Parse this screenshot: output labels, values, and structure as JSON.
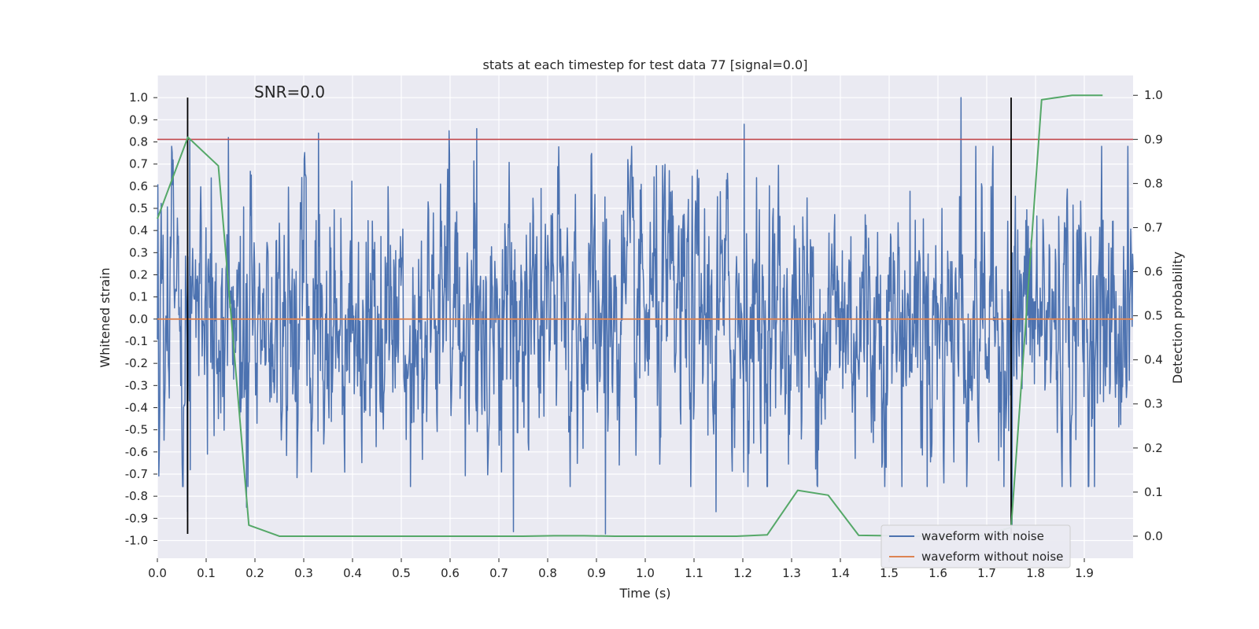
{
  "chart_data": {
    "type": "line",
    "title": "stats at each timestep for test data 77 [signal=0.0]",
    "annotation": "SNR=0.0",
    "xlabel": "Time (s)",
    "ylabel_left": "Whitened strain",
    "ylabel_right": "Detection probability",
    "xlim": [
      0.0,
      2.0
    ],
    "ylim_left": [
      -1.08,
      1.1
    ],
    "ylim_right": [
      -0.05,
      1.045
    ],
    "x_ticks": [
      0.0,
      0.1,
      0.2,
      0.3,
      0.4,
      0.5,
      0.6,
      0.7,
      0.8,
      0.9,
      1.0,
      1.1,
      1.2,
      1.3,
      1.4,
      1.5,
      1.6,
      1.7,
      1.8,
      1.9
    ],
    "x_tick_labels": [
      "0.0",
      "0.1",
      "0.2",
      "0.3",
      "0.4",
      "0.5",
      "0.6",
      "0.7",
      "0.8",
      "0.9",
      "1.0",
      "1.1",
      "1.2",
      "1.3",
      "1.4",
      "1.5",
      "1.6",
      "1.7",
      "1.8",
      "1.9"
    ],
    "y_ticks_left": [
      1.0,
      0.9,
      0.8,
      0.7,
      0.6,
      0.5,
      0.4,
      0.3,
      0.2,
      0.1,
      0.0,
      -0.1,
      -0.2,
      -0.3,
      -0.4,
      -0.5,
      -0.6,
      -0.7,
      -0.8,
      -0.9,
      -1.0
    ],
    "y_tick_labels_left": [
      "1.0",
      "0.9",
      "0.8",
      "0.7",
      "0.6",
      "0.5",
      "0.4",
      "0.3",
      "0.2",
      "0.1",
      "0.0",
      "-0.1",
      "-0.2",
      "-0.3",
      "-0.4",
      "-0.5",
      "-0.6",
      "-0.7",
      "-0.8",
      "-0.9",
      "-1.0"
    ],
    "y_ticks_right": [
      1.0,
      0.9,
      0.8,
      0.7,
      0.6,
      0.5,
      0.4,
      0.3,
      0.2,
      0.1,
      0.0
    ],
    "y_tick_labels_right": [
      "1.0",
      "0.9",
      "0.8",
      "0.7",
      "0.6",
      "0.5",
      "0.4",
      "0.3",
      "0.2",
      "0.1",
      "0.0"
    ],
    "threshold_probability": 0.9,
    "vertical_markers_x": [
      0.062,
      1.75
    ],
    "vertical_marker_range_left": [
      -0.97,
      1.0
    ],
    "noise_series": {
      "name": "waveform with noise",
      "color": "#4c72b0",
      "sample_count": 2048,
      "seed": 77,
      "approx_std": 0.3,
      "range": [
        -0.97,
        1.0
      ],
      "peaks": [
        {
          "x": 1.647,
          "y": 1.0
        },
        {
          "x": 1.203,
          "y": 0.88
        },
        {
          "x": 0.066,
          "y": 0.81
        },
        {
          "x": 0.146,
          "y": 0.82
        },
        {
          "x": 0.655,
          "y": 0.86
        },
        {
          "x": 0.598,
          "y": 0.85
        },
        {
          "x": 0.33,
          "y": 0.84
        },
        {
          "x": 0.73,
          "y": -0.96
        },
        {
          "x": 0.918,
          "y": -0.97
        },
        {
          "x": 0.183,
          "y": -0.85
        },
        {
          "x": 0.062,
          "y": -0.87
        },
        {
          "x": 1.145,
          "y": -0.87
        },
        {
          "x": 1.752,
          "y": -0.93
        }
      ]
    },
    "clean_series": {
      "name": "waveform without noise",
      "color": "#dd8452",
      "value": 0.0
    },
    "probability_series": {
      "name": "Detection probability",
      "color": "#55a868",
      "x": [
        0.0,
        0.0625,
        0.125,
        0.1875,
        0.25,
        0.3125,
        0.375,
        0.4375,
        0.5,
        0.5625,
        0.625,
        0.6875,
        0.75,
        0.8125,
        0.875,
        0.9375,
        1.0,
        1.0625,
        1.125,
        1.1875,
        1.25,
        1.3125,
        1.375,
        1.4375,
        1.5,
        1.5625,
        1.625,
        1.6875,
        1.75,
        1.8125,
        1.875,
        1.9375
      ],
      "y": [
        0.72,
        0.905,
        0.84,
        0.025,
        0.0,
        0.0,
        0.0,
        0.0,
        0.0,
        0.0,
        0.0,
        0.0,
        0.0,
        0.001,
        0.001,
        0.0,
        0.0,
        0.0,
        0.0,
        0.0,
        0.003,
        0.104,
        0.093,
        0.002,
        0.001,
        0.0,
        0.0,
        0.0,
        0.02,
        0.99,
        1.0,
        1.0
      ]
    },
    "legend": {
      "placement": "lower-right",
      "entries": [
        {
          "label": "waveform with noise",
          "color": "#4c72b0"
        },
        {
          "label": "waveform without noise",
          "color": "#dd8452"
        }
      ]
    },
    "threshold_color": "#c44e52",
    "marker_color": "#000000"
  }
}
